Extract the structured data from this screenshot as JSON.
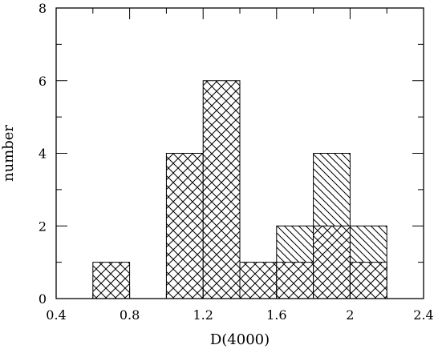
{
  "chart_data": {
    "type": "bar",
    "xlabel": "D(4000)",
    "ylabel": "number",
    "xlim": [
      0.4,
      2.4
    ],
    "ylim": [
      0,
      8
    ],
    "xticks": [
      0.4,
      0.8,
      1.2,
      1.6,
      2,
      2.4
    ],
    "yticks": [
      0,
      2,
      4,
      6,
      8
    ],
    "bin_width": 0.2,
    "grid": false,
    "legend": "none",
    "series": [
      {
        "pattern": "cross-hatch",
        "bins": [
          {
            "x0": 0.6,
            "x1": 0.8,
            "value": 1
          },
          {
            "x0": 1.0,
            "x1": 1.2,
            "value": 4
          },
          {
            "x0": 1.2,
            "x1": 1.4,
            "value": 6
          },
          {
            "x0": 1.4,
            "x1": 1.6,
            "value": 1
          },
          {
            "x0": 1.6,
            "x1": 1.8,
            "value": 1
          },
          {
            "x0": 1.8,
            "x1": 2.0,
            "value": 2
          },
          {
            "x0": 2.0,
            "x1": 2.2,
            "value": 1
          }
        ]
      },
      {
        "pattern": "diagonal-hatch",
        "bins": [
          {
            "x0": 1.6,
            "x1": 1.8,
            "value": 2
          },
          {
            "x0": 1.8,
            "x1": 2.0,
            "value": 4
          },
          {
            "x0": 2.0,
            "x1": 2.2,
            "value": 2
          }
        ]
      }
    ]
  }
}
